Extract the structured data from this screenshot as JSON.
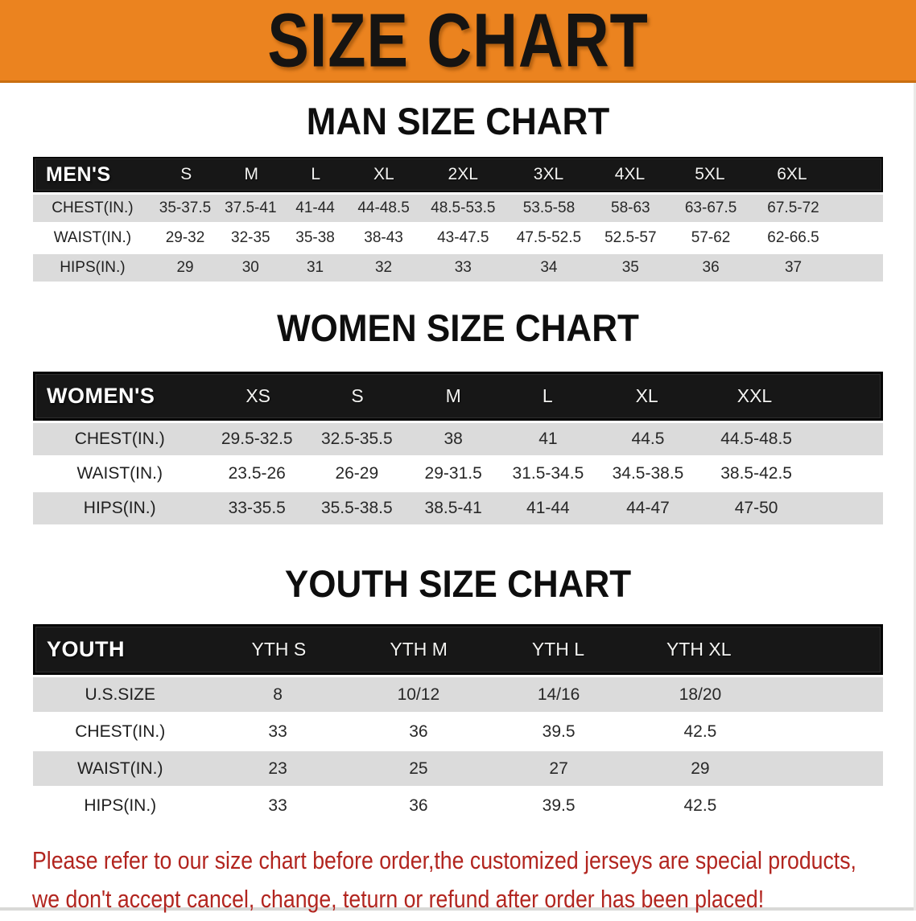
{
  "banner": {
    "title": "SIZE CHART",
    "bg_color": "#EB831F"
  },
  "sections": [
    {
      "heading": "MAN SIZE CHART",
      "table": {
        "label": "MEN'S",
        "columns": [
          "S",
          "M",
          "L",
          "XL",
          "2XL",
          "3XL",
          "4XL",
          "5XL",
          "6XL"
        ],
        "rows": [
          {
            "label": "CHEST(IN.)",
            "values": [
              "35-37.5",
              "37.5-41",
              "41-44",
              "44-48.5",
              "48.5-53.5",
              "53.5-58",
              "58-63",
              "63-67.5",
              "67.5-72"
            ]
          },
          {
            "label": "WAIST(IN.)",
            "values": [
              "29-32",
              "32-35",
              "35-38",
              "38-43",
              "43-47.5",
              "47.5-52.5",
              "52.5-57",
              "57-62",
              "62-66.5"
            ]
          },
          {
            "label": "HIPS(IN.)",
            "values": [
              "29",
              "30",
              "31",
              "32",
              "33",
              "34",
              "35",
              "36",
              "37"
            ]
          }
        ]
      }
    },
    {
      "heading": "WOMEN SIZE CHART",
      "table": {
        "label": "WOMEN'S",
        "columns": [
          "XS",
          "S",
          "M",
          "L",
          "XL",
          "XXL"
        ],
        "rows": [
          {
            "label": "CHEST(IN.)",
            "values": [
              "29.5-32.5",
              "32.5-35.5",
              "38",
              "41",
              "44.5",
              "44.5-48.5"
            ]
          },
          {
            "label": "WAIST(IN.)",
            "values": [
              "23.5-26",
              "26-29",
              "29-31.5",
              "31.5-34.5",
              "34.5-38.5",
              "38.5-42.5"
            ]
          },
          {
            "label": "HIPS(IN.)",
            "values": [
              "33-35.5",
              "35.5-38.5",
              "38.5-41",
              "41-44",
              "44-47",
              "47-50"
            ]
          }
        ]
      }
    },
    {
      "heading": "YOUTH SIZE CHART",
      "table": {
        "label": "YOUTH",
        "columns": [
          "YTH S",
          "YTH M",
          "YTH L",
          "YTH XL"
        ],
        "rows": [
          {
            "label": "U.S.SIZE",
            "values": [
              "8",
              "10/12",
              "14/16",
              "18/20"
            ]
          },
          {
            "label": "CHEST(IN.)",
            "values": [
              "33",
              "36",
              "39.5",
              "42.5"
            ]
          },
          {
            "label": "WAIST(IN.)",
            "values": [
              "23",
              "25",
              "27",
              "29"
            ]
          },
          {
            "label": "HIPS(IN.)",
            "values": [
              "33",
              "36",
              "39.5",
              "42.5"
            ]
          }
        ]
      }
    }
  ],
  "disclaimer": {
    "line1": "Please refer to our size chart before order,the customized jerseys are special products,",
    "line2": "we don't accept cancel, change, teturn or refund after order has been placed!",
    "color": "#B2251F"
  }
}
